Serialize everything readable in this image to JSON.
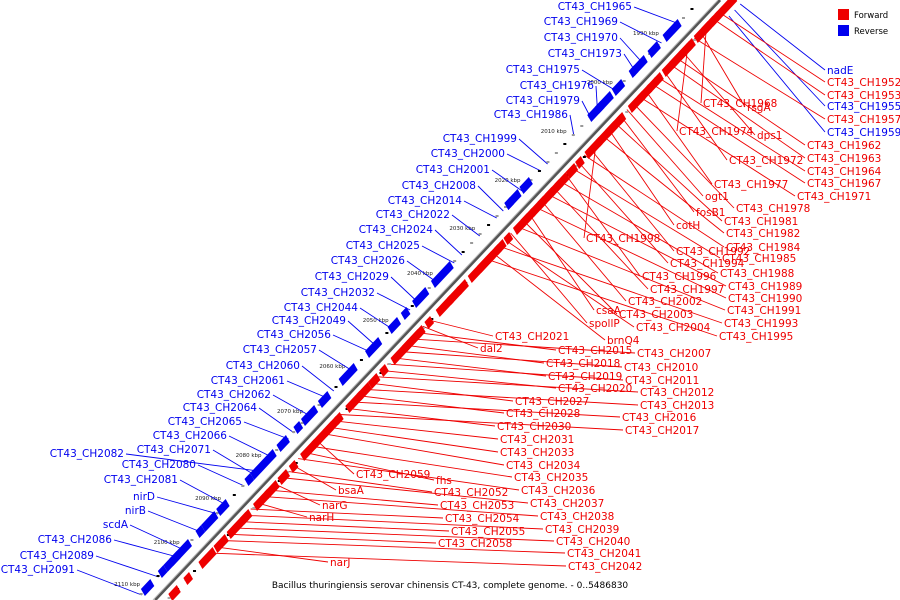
{
  "legend": {
    "forward": {
      "label": "Forward",
      "color": "#ee0000"
    },
    "reverse": {
      "label": "Reverse",
      "color": "#0000ee"
    }
  },
  "caption": "Bacillus thuringiensis serovar chinensis CT-43, complete genome. - 0..5486830",
  "ticks": [
    "1990 kbp",
    "2000 kbp",
    "2010 kbp",
    "2020 kbp",
    "2030 kbp",
    "2040 kbp",
    "2050 kbp",
    "2060 kbp",
    "2070 kbp",
    "2080 kbp",
    "2090 kbp",
    "2100 kbp",
    "2110 kbp"
  ],
  "reverse_labels": [
    "CT43_CH1965",
    "CT43_CH1969",
    "CT43_CH1970",
    "CT43_CH1973",
    "CT43_CH1975",
    "CT43_CH1976",
    "CT43_CH1979",
    "CT43_CH1986",
    "CT43_CH1999",
    "CT43_CH2000",
    "CT43_CH2001",
    "CT43_CH2008",
    "CT43_CH2014",
    "CT43_CH2022",
    "CT43_CH2024",
    "CT43_CH2025",
    "CT43_CH2026",
    "CT43_CH2029",
    "CT43_CH2032",
    "CT43_CH2044",
    "CT43_CH2049",
    "CT43_CH2056",
    "CT43_CH2057",
    "CT43_CH2060",
    "CT43_CH2061",
    "CT43_CH2062",
    "CT43_CH2064",
    "CT43_CH2065",
    "CT43_CH2066",
    "CT43_CH2071",
    "CT43_CH2082",
    "CT43_CH2080",
    "CT43_CH2081",
    "nirD",
    "nirB",
    "scdA",
    "CT43_CH2086",
    "CT43_CH2089",
    "CT43_CH2091"
  ],
  "reverse_right_labels": [
    "nadE",
    "CT43_CH1955",
    "CT43_CH1959"
  ],
  "forward_labels_a": [
    "CT43_CH1952",
    "CT43_CH1953",
    "CT43_CH1968",
    "rsgA",
    "CT43_CH1957",
    "CT43_CH1974",
    "dps1",
    "CT43_CH1962",
    "CT43_CH1963",
    "CT43_CH1972",
    "CT43_CH1964",
    "CT43_CH1967",
    "CT43_CH1977",
    "CT43_CH1971",
    "CT43_CH1978",
    "ogt1",
    "fosB1",
    "CT43_CH1981",
    "cotH",
    "CT43_CH1982",
    "CT43_CH1998",
    "CT43_CH1992",
    "CT43_CH1984",
    "CT43_CH1994",
    "CT43_CH1985",
    "CT43_CH1996",
    "CT43_CH1988",
    "CT43_CH1997",
    "CT43_CH1989",
    "CT43_CH2002",
    "CT43_CH1990",
    "csaA",
    "CT43_CH2003",
    "CT43_CH1991",
    "spollP",
    "CT43_CH2004",
    "CT43_CH1993",
    "brnQ4",
    "CT43_CH1995"
  ],
  "forward_labels_b": [
    "CT43_CH2021",
    "dal2",
    "CT43_CH2015",
    "CT43_CH2007",
    "CT43_CH2018",
    "CT43_CH2010",
    "CT43_CH2019",
    "CT43_CH2011",
    "CT43_CH2020",
    "CT43_CH2012",
    "CT43_CH2027",
    "CT43_CH2013",
    "CT43_CH2028",
    "CT43_CH2016",
    "CT43_CH2030",
    "CT43_CH2017",
    "CT43_CH2031",
    "CT43_CH2033",
    "CT43_CH2034",
    "CT43_CH2059",
    "CT43_CH2035",
    "fhs",
    "CT43_CH2036",
    "bsaA",
    "CT43_CH2052",
    "CT43_CH2037",
    "narG",
    "CT43_CH2053",
    "CT43_CH2038",
    "narH",
    "CT43_CH2054",
    "CT43_CH2039",
    "CT43_CH2055",
    "CT43_CH2040",
    "CT43_CH2058",
    "CT43_CH2041",
    "narJ",
    "CT43_CH2042"
  ]
}
